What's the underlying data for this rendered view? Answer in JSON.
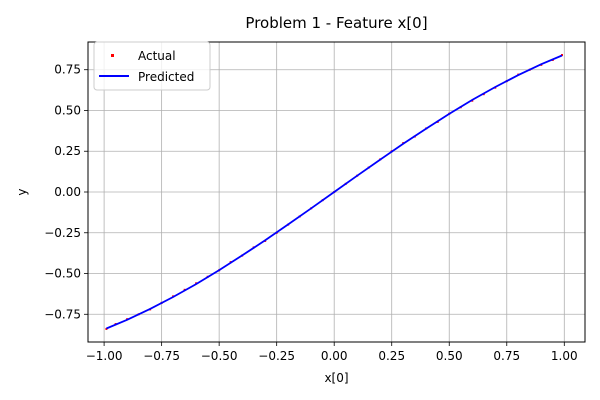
{
  "chart_data": {
    "type": "scatter",
    "title": "Problem 1 - Feature x[0]",
    "xlabel": "x[0]",
    "ylabel": "y",
    "xlim": [
      -1.07,
      1.09
    ],
    "ylim": [
      -0.92,
      0.92
    ],
    "x_ticks": [
      -1.0,
      -0.75,
      -0.5,
      -0.25,
      0.0,
      0.25,
      0.5,
      0.75,
      1.0
    ],
    "x_tick_labels": [
      "−1.00",
      "−0.75",
      "−0.50",
      "−0.25",
      "0.00",
      "0.25",
      "0.50",
      "0.75",
      "1.00"
    ],
    "y_ticks": [
      -0.75,
      -0.5,
      -0.25,
      0.0,
      0.25,
      0.5,
      0.75
    ],
    "y_tick_labels": [
      "−0.75",
      "−0.50",
      "−0.25",
      "0.00",
      "0.25",
      "0.50",
      "0.75"
    ],
    "grid": true,
    "legend_position": "top-left",
    "series": [
      {
        "name": "Actual",
        "kind": "scatter",
        "color": "#ff0000",
        "x": [
          -0.99,
          -0.95,
          -0.9,
          -0.85,
          -0.8,
          -0.75,
          -0.7,
          -0.65,
          -0.6,
          -0.55,
          -0.5,
          -0.45,
          -0.4,
          -0.35,
          -0.3,
          -0.25,
          -0.2,
          -0.15,
          -0.1,
          -0.05,
          0.0,
          0.05,
          0.1,
          0.15,
          0.2,
          0.25,
          0.3,
          0.35,
          0.4,
          0.45,
          0.5,
          0.55,
          0.6,
          0.65,
          0.7,
          0.75,
          0.8,
          0.85,
          0.9,
          0.95,
          0.99
        ],
        "y": [
          -0.84,
          -0.81,
          -0.78,
          -0.75,
          -0.72,
          -0.68,
          -0.64,
          -0.6,
          -0.56,
          -0.52,
          -0.48,
          -0.43,
          -0.39,
          -0.34,
          -0.3,
          -0.25,
          -0.2,
          -0.15,
          -0.1,
          -0.05,
          0.0,
          0.05,
          0.1,
          0.15,
          0.2,
          0.25,
          0.3,
          0.34,
          0.39,
          0.43,
          0.48,
          0.52,
          0.56,
          0.6,
          0.64,
          0.68,
          0.72,
          0.75,
          0.78,
          0.81,
          0.84
        ]
      },
      {
        "name": "Predicted",
        "kind": "line",
        "color": "#0000ff",
        "x": [
          -0.99,
          -0.9,
          -0.8,
          -0.7,
          -0.6,
          -0.5,
          -0.4,
          -0.3,
          -0.2,
          -0.1,
          0.0,
          0.1,
          0.2,
          0.3,
          0.4,
          0.5,
          0.6,
          0.7,
          0.8,
          0.9,
          0.99
        ],
        "y": [
          -0.837,
          -0.784,
          -0.717,
          -0.644,
          -0.565,
          -0.479,
          -0.389,
          -0.296,
          -0.199,
          -0.1,
          0.0,
          0.1,
          0.199,
          0.296,
          0.389,
          0.479,
          0.565,
          0.644,
          0.717,
          0.784,
          0.837
        ]
      }
    ]
  }
}
